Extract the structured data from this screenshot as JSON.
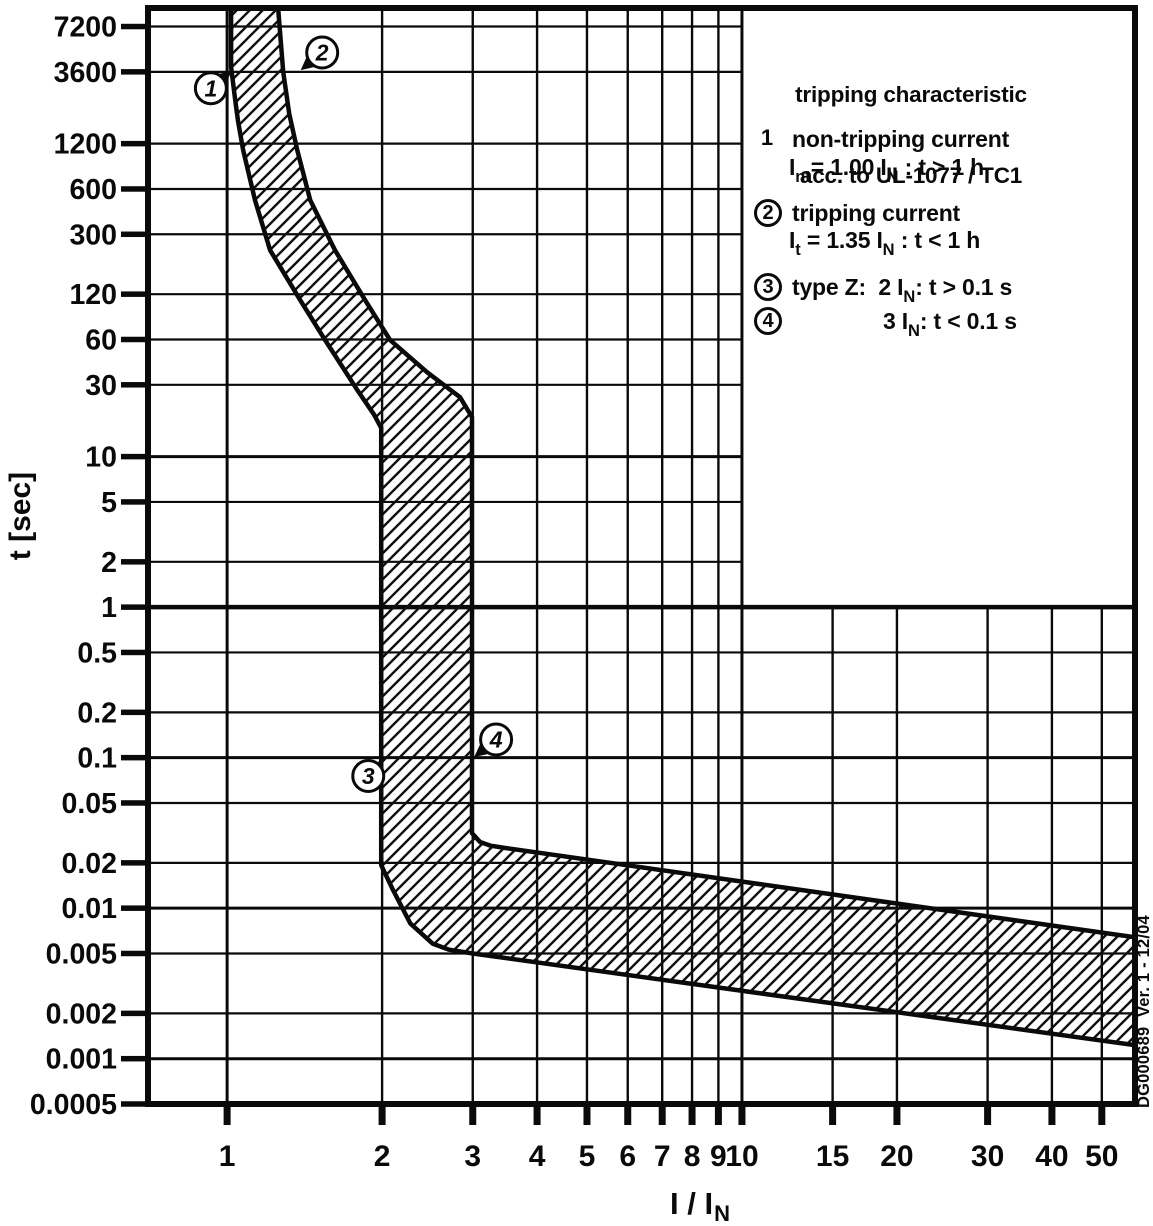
{
  "page": {
    "background": "#ffffff",
    "ink": "#0a0a0a"
  },
  "chart_data": {
    "type": "area",
    "title": "tripping characteristic acc. to UL-1077 / TC1",
    "xlabel": "I / I_N",
    "ylabel": "t [sec]",
    "x_scale": "log",
    "y_scale": "log",
    "grid": true,
    "xlim": [
      0.702,
      58
    ],
    "ylim": [
      0.0005,
      9560
    ],
    "x_ticks": [
      "1",
      "2",
      "3",
      "4",
      "5",
      "6",
      "7",
      "8",
      "9",
      "10",
      "15",
      "20",
      "30",
      "40",
      "50"
    ],
    "y_ticks": [
      "7200",
      "3600",
      "1200",
      "600",
      "300",
      "120",
      "60",
      "30",
      "10",
      "5",
      "2",
      "1",
      "0.5",
      "0.2",
      "0.1",
      "0.05",
      "0.02",
      "0.01",
      "0.005",
      "0.002",
      "0.001",
      "0.0005"
    ],
    "xlabel_segments": [
      {
        "t": "I / I"
      },
      {
        "s": "N"
      }
    ],
    "legend_box": {
      "x_from": 10,
      "t_above": 1
    },
    "band": {
      "lower_curve": [
        [
          1.018,
          9600
        ],
        [
          1.018,
          3870
        ],
        [
          1.037,
          2340
        ],
        [
          1.05,
          1700
        ],
        [
          1.074,
          1090
        ],
        [
          1.133,
          506
        ],
        [
          1.212,
          235
        ],
        [
          1.386,
          110
        ],
        [
          1.55,
          59.4
        ],
        [
          1.79,
          27.7
        ],
        [
          1.93,
          19
        ],
        [
          1.992,
          15.5
        ],
        [
          1.992,
          0.0193
        ],
        [
          2.1,
          0.0132
        ],
        [
          2.27,
          0.0079
        ],
        [
          2.51,
          0.0058
        ],
        [
          2.7,
          0.0053
        ],
        [
          3.0,
          0.005
        ],
        [
          58,
          0.00123
        ]
      ],
      "upper_curve": [
        [
          1.256,
          9600
        ],
        [
          1.285,
          3600
        ],
        [
          1.32,
          1900
        ],
        [
          1.368,
          1090
        ],
        [
          1.45,
          506
        ],
        [
          1.62,
          235
        ],
        [
          1.853,
          110
        ],
        [
          2.073,
          59.4
        ],
        [
          2.447,
          36.3
        ],
        [
          2.834,
          24.8
        ],
        [
          2.99,
          18.3
        ],
        [
          2.99,
          0.0315
        ],
        [
          3.1,
          0.0275
        ],
        [
          3.25,
          0.026
        ],
        [
          3.47,
          0.0251
        ],
        [
          58,
          0.0064
        ]
      ]
    },
    "markers": [
      {
        "label": "1",
        "I": 0.93,
        "t": 2800,
        "target_I": 1.02,
        "target_t": 3650
      },
      {
        "label": "2",
        "I": 1.53,
        "t": 4840,
        "target_I": 1.39,
        "target_t": 3700
      },
      {
        "label": "3",
        "I": 1.88,
        "t": 0.0755,
        "target_I": 2.01,
        "target_t": 0.0966
      },
      {
        "label": "4",
        "I": 3.33,
        "t": 0.132,
        "target_I": 3.02,
        "target_t": 0.101
      }
    ]
  },
  "legend": {
    "title_line1": "tripping characteristic",
    "title_line2": "acc. to UL-1077 / TC1",
    "items": [
      {
        "marker": "1",
        "circled": false,
        "lines": [
          [
            {
              "t": "non-tripping current"
            }
          ],
          [
            {
              "t": "I"
            },
            {
              "s": "nt"
            },
            {
              "t": "= 1.00 I"
            },
            {
              "s": "N"
            },
            {
              "t": " : t > 1 h"
            }
          ]
        ]
      },
      {
        "marker": "2",
        "circled": true,
        "lines": [
          [
            {
              "t": "tripping current"
            }
          ],
          [
            {
              "t": "I"
            },
            {
              "s": "t"
            },
            {
              "t": " = 1.35 I"
            },
            {
              "s": "N"
            },
            {
              "t": " : t < 1 h"
            }
          ]
        ]
      },
      {
        "marker": "3",
        "circled": true,
        "lines": [
          [
            {
              "t": "type Z:  2 I"
            },
            {
              "s": "N"
            },
            {
              "t": ": t > 0.1 s"
            }
          ]
        ]
      },
      {
        "marker": "4",
        "circled": true,
        "lines": [
          [
            {
              "t": "3 I"
            },
            {
              "s": "N"
            },
            {
              "t": ": t < 0.1 s"
            }
          ]
        ]
      }
    ]
  },
  "side_note": "DG000689  Ver. 1 - 12/04"
}
